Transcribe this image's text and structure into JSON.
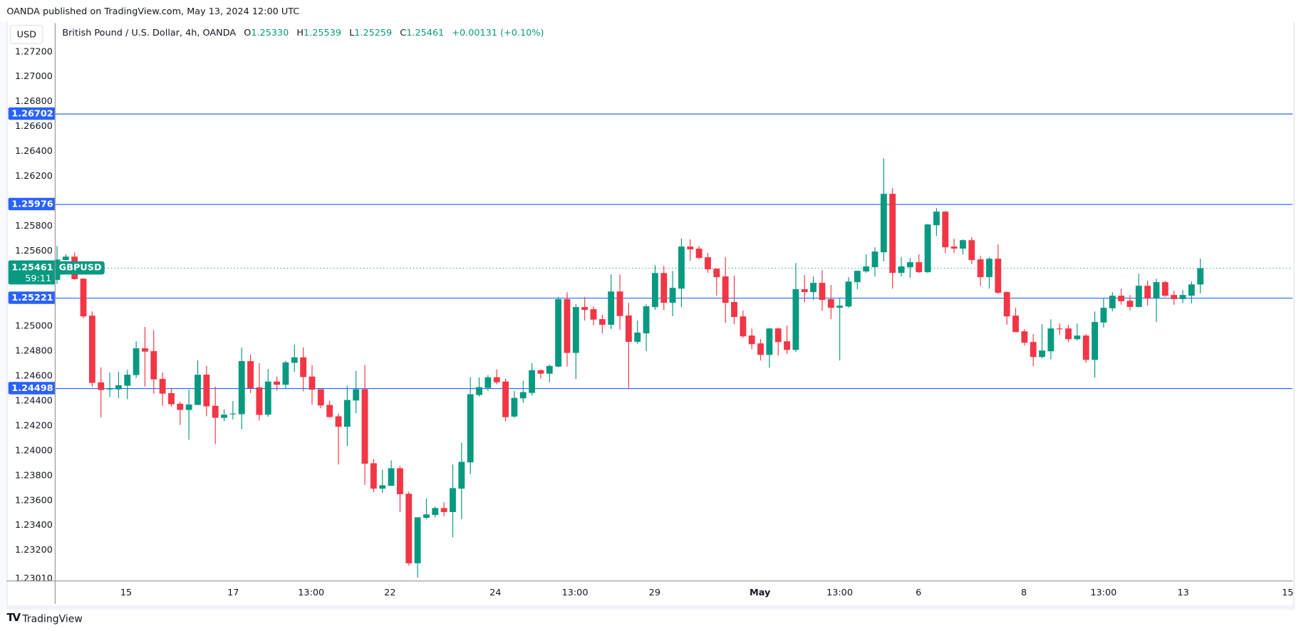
{
  "header": {
    "published": "OANDA published on TradingView.com, May 13, 2024 12:00 UTC"
  },
  "currency_button": "USD",
  "legend": {
    "title": "British Pound / U.S. Dollar, 4h, OANDA",
    "o_label": "O",
    "o": "1.25330",
    "h_label": "H",
    "h": "1.25539",
    "l_label": "L",
    "l": "1.25259",
    "c_label": "C",
    "c": "1.25461",
    "change": "+0.00131 (+0.10%)"
  },
  "current_price": {
    "value": "1.25461",
    "countdown": "59:11",
    "symbol": "GBPUSD"
  },
  "brand": {
    "name": "TradingView",
    "mark": "TV"
  },
  "colors": {
    "up": "#089981",
    "down": "#f23645",
    "level_line": "#2962ff",
    "current_line": "#089981"
  },
  "chart_data": {
    "type": "candlestick",
    "title": "British Pound / U.S. Dollar, 4h, OANDA",
    "ylim": [
      1.2301,
      1.272
    ],
    "y_ticks": [
      "1.27200",
      "1.27000",
      "1.26800",
      "1.26600",
      "1.26400",
      "1.26200",
      "1.25800",
      "1.25600",
      "1.25000",
      "1.24800",
      "1.24600",
      "1.24400",
      "1.24200",
      "1.24000",
      "1.23800",
      "1.23600",
      "1.23400",
      "1.23200",
      "1.23010"
    ],
    "x_ticks": [
      "15",
      "17",
      "13:00",
      "22",
      "24",
      "13:00",
      "29",
      "May",
      "13:00",
      "6",
      "8",
      "13:00",
      "13",
      "15"
    ],
    "horizontal_levels": [
      "1.26702",
      "1.25976",
      "1.25221",
      "1.24498"
    ],
    "current_price_line": 1.25461,
    "ohlc_fields": [
      "open",
      "high",
      "low",
      "close"
    ],
    "candles": [
      [
        1.25367,
        1.2564,
        1.25335,
        1.25531
      ],
      [
        1.25527,
        1.25573,
        1.25524,
        1.25554
      ],
      [
        1.25554,
        1.25588,
        1.25368,
        1.25373
      ],
      [
        1.25377,
        1.2538,
        1.25059,
        1.25074
      ],
      [
        1.2508,
        1.25114,
        1.24511,
        1.2454
      ],
      [
        1.24544,
        1.24665,
        1.24264,
        1.24483
      ],
      [
        1.24488,
        1.24624,
        1.24426,
        1.24494
      ],
      [
        1.24488,
        1.24629,
        1.24418,
        1.24521
      ],
      [
        1.24517,
        1.24646,
        1.24409,
        1.24606
      ],
      [
        1.24603,
        1.24875,
        1.24578,
        1.24818
      ],
      [
        1.24818,
        1.24989,
        1.24511,
        1.24791
      ],
      [
        1.24795,
        1.24966,
        1.24454,
        1.24568
      ],
      [
        1.24572,
        1.24624,
        1.24357,
        1.24454
      ],
      [
        1.24458,
        1.24494,
        1.2435,
        1.24369
      ],
      [
        1.24373,
        1.2439,
        1.24203,
        1.24323
      ],
      [
        1.24323,
        1.24486,
        1.24083,
        1.24367
      ],
      [
        1.24363,
        1.24721,
        1.24363,
        1.24606
      ],
      [
        1.24606,
        1.24677,
        1.24272,
        1.24352
      ],
      [
        1.24356,
        1.2451,
        1.24049,
        1.2426
      ],
      [
        1.2426,
        1.24327,
        1.24232,
        1.24285
      ],
      [
        1.2429,
        1.24395,
        1.24247,
        1.24294
      ],
      [
        1.24289,
        1.24823,
        1.24167,
        1.24715
      ],
      [
        1.24715,
        1.24766,
        1.24458,
        1.24498
      ],
      [
        1.24504,
        1.24698,
        1.24237,
        1.24283
      ],
      [
        1.24285,
        1.24652,
        1.24268,
        1.24551
      ],
      [
        1.24551,
        1.24591,
        1.24479,
        1.24525
      ],
      [
        1.24525,
        1.24717,
        1.24498,
        1.24705
      ],
      [
        1.24701,
        1.24848,
        1.24627,
        1.24745
      ],
      [
        1.24745,
        1.24825,
        1.24473,
        1.24587
      ],
      [
        1.24591,
        1.24683,
        1.24365,
        1.24485
      ],
      [
        1.24489,
        1.24489,
        1.24336,
        1.24359
      ],
      [
        1.24363,
        1.24397,
        1.2426,
        1.24266
      ],
      [
        1.24272,
        1.24294,
        1.23885,
        1.24188
      ],
      [
        1.24188,
        1.24517,
        1.24034,
        1.24403
      ],
      [
        1.24399,
        1.24637,
        1.24296,
        1.24489
      ],
      [
        1.24489,
        1.24683,
        1.2372,
        1.23891
      ],
      [
        1.23895,
        1.23929,
        1.23663,
        1.23691
      ],
      [
        1.23691,
        1.23843,
        1.23657,
        1.23718
      ],
      [
        1.23714,
        1.23918,
        1.23714,
        1.23855
      ],
      [
        1.23855,
        1.23872,
        1.23503,
        1.23646
      ],
      [
        1.2365,
        1.23667,
        1.23073,
        1.23092
      ],
      [
        1.23092,
        1.23461,
        1.22978,
        1.23461
      ],
      [
        1.23457,
        1.23611,
        1.23446,
        1.23484
      ],
      [
        1.2348,
        1.23547,
        1.23461,
        1.23535
      ],
      [
        1.23535,
        1.23581,
        1.23469,
        1.23503
      ],
      [
        1.23503,
        1.23885,
        1.23301,
        1.23695
      ],
      [
        1.23691,
        1.2406,
        1.23446,
        1.23906
      ],
      [
        1.23902,
        1.24586,
        1.23806,
        1.24449
      ],
      [
        1.24443,
        1.24585,
        1.2443,
        1.24506
      ],
      [
        1.245,
        1.24602,
        1.24477,
        1.24585
      ],
      [
        1.24585,
        1.24648,
        1.24528,
        1.24545
      ],
      [
        1.24551,
        1.24574,
        1.24234,
        1.24265
      ],
      [
        1.2427,
        1.24477,
        1.2426,
        1.2442
      ],
      [
        1.24416,
        1.24557,
        1.2438,
        1.24466
      ],
      [
        1.2446,
        1.24699,
        1.2444,
        1.24642
      ],
      [
        1.24642,
        1.24648,
        1.24574,
        1.24614
      ],
      [
        1.24614,
        1.24688,
        1.24545,
        1.24676
      ],
      [
        1.24671,
        1.25229,
        1.24665,
        1.25212
      ],
      [
        1.25212,
        1.25268,
        1.24671,
        1.24781
      ],
      [
        1.24781,
        1.25172,
        1.2457,
        1.25149
      ],
      [
        1.25149,
        1.25229,
        1.25041,
        1.25126
      ],
      [
        1.25132,
        1.25155,
        1.25003,
        1.25048
      ],
      [
        1.25052,
        1.25086,
        1.24938,
        1.25007
      ],
      [
        1.25007,
        1.25411,
        1.24972,
        1.25274
      ],
      [
        1.25274,
        1.25411,
        1.24967,
        1.25077
      ],
      [
        1.25081,
        1.25183,
        1.2449,
        1.2487
      ],
      [
        1.2487,
        1.25041,
        1.24853,
        1.24944
      ],
      [
        1.24938,
        1.25172,
        1.24796,
        1.25155
      ],
      [
        1.25149,
        1.25485,
        1.25126,
        1.25422
      ],
      [
        1.25422,
        1.25479,
        1.25126,
        1.25183
      ],
      [
        1.25183,
        1.25439,
        1.25075,
        1.25303
      ],
      [
        1.25297,
        1.25698,
        1.25149,
        1.25635
      ],
      [
        1.25635,
        1.25692,
        1.2552,
        1.25612
      ],
      [
        1.25618,
        1.2564,
        1.25532,
        1.25543
      ],
      [
        1.25549,
        1.25583,
        1.25423,
        1.25452
      ],
      [
        1.25457,
        1.25457,
        1.2524,
        1.25389
      ],
      [
        1.25395,
        1.25549,
        1.25023,
        1.25183
      ],
      [
        1.25189,
        1.254,
        1.25011,
        1.25069
      ],
      [
        1.25074,
        1.2512,
        1.24903,
        1.24914
      ],
      [
        1.2492,
        1.24977,
        1.24811,
        1.24851
      ],
      [
        1.24857,
        1.24891,
        1.2472,
        1.24765
      ],
      [
        1.24765,
        1.24983,
        1.24662,
        1.24977
      ],
      [
        1.24977,
        1.24983,
        1.2476,
        1.24868
      ],
      [
        1.24874,
        1.25,
        1.24771,
        1.24805
      ],
      [
        1.24805,
        1.25503,
        1.24788,
        1.25292
      ],
      [
        1.25292,
        1.25406,
        1.25189,
        1.25269
      ],
      [
        1.25269,
        1.25395,
        1.25206,
        1.25343
      ],
      [
        1.25343,
        1.25446,
        1.2512,
        1.25206
      ],
      [
        1.25212,
        1.25326,
        1.25051,
        1.25143
      ],
      [
        1.25143,
        1.25221,
        1.2472,
        1.2516
      ],
      [
        1.25154,
        1.25389,
        1.25143,
        1.25354
      ],
      [
        1.25349,
        1.2544,
        1.25292,
        1.2544
      ],
      [
        1.25435,
        1.25572,
        1.25423,
        1.25475
      ],
      [
        1.25469,
        1.25629,
        1.25395,
        1.25595
      ],
      [
        1.25589,
        1.26344,
        1.25515,
        1.26058
      ],
      [
        1.26058,
        1.26104,
        1.25297,
        1.25423
      ],
      [
        1.25423,
        1.25549,
        1.25395,
        1.25475
      ],
      [
        1.25469,
        1.25543,
        1.25383,
        1.25509
      ],
      [
        1.25509,
        1.25572,
        1.25423,
        1.25429
      ],
      [
        1.25429,
        1.25818,
        1.25423,
        1.25812
      ],
      [
        1.25806,
        1.25944,
        1.25721,
        1.25915
      ],
      [
        1.25915,
        1.25921,
        1.25583,
        1.25629
      ],
      [
        1.25635,
        1.25698,
        1.25583,
        1.25618
      ],
      [
        1.25618,
        1.25692,
        1.25572,
        1.25686
      ],
      [
        1.25686,
        1.25709,
        1.25492,
        1.25526
      ],
      [
        1.25532,
        1.2556,
        1.2532,
        1.25389
      ],
      [
        1.25389,
        1.25549,
        1.25297,
        1.25537
      ],
      [
        1.25537,
        1.25652,
        1.25257,
        1.25263
      ],
      [
        1.25269,
        1.25274,
        1.25006,
        1.25074
      ],
      [
        1.2508,
        1.25143,
        1.24948,
        1.24948
      ],
      [
        1.24954,
        1.24971,
        1.2484,
        1.24863
      ],
      [
        1.24868,
        1.24931,
        1.24674,
        1.24748
      ],
      [
        1.24748,
        1.25011,
        1.24737,
        1.248
      ],
      [
        1.24794,
        1.25051,
        1.24731,
        1.24977
      ],
      [
        1.24977,
        1.25017,
        1.24926,
        1.24971
      ],
      [
        1.24977,
        1.25006,
        1.24868,
        1.24891
      ],
      [
        1.24891,
        1.25017,
        1.2488,
        1.2492
      ],
      [
        1.2492,
        1.24931,
        1.24703,
        1.24725
      ],
      [
        1.24725,
        1.25114,
        1.24582,
        1.25029
      ],
      [
        1.25025,
        1.25221,
        1.24983,
        1.25143
      ],
      [
        1.25139,
        1.25269,
        1.25116,
        1.2524
      ],
      [
        1.2524,
        1.25297,
        1.25168,
        1.25196
      ],
      [
        1.252,
        1.25246,
        1.25122,
        1.2515
      ],
      [
        1.2515,
        1.25417,
        1.25145,
        1.2532
      ],
      [
        1.2532,
        1.2536,
        1.25162,
        1.25219
      ],
      [
        1.25219,
        1.25377,
        1.25029,
        1.25349
      ],
      [
        1.25349,
        1.2536,
        1.25231,
        1.2524
      ],
      [
        1.25246,
        1.2528,
        1.25168,
        1.25213
      ],
      [
        1.25213,
        1.25286,
        1.25179,
        1.25246
      ],
      [
        1.2524,
        1.25354,
        1.25179,
        1.25331
      ],
      [
        1.2533,
        1.25539,
        1.25259,
        1.25461
      ]
    ]
  }
}
